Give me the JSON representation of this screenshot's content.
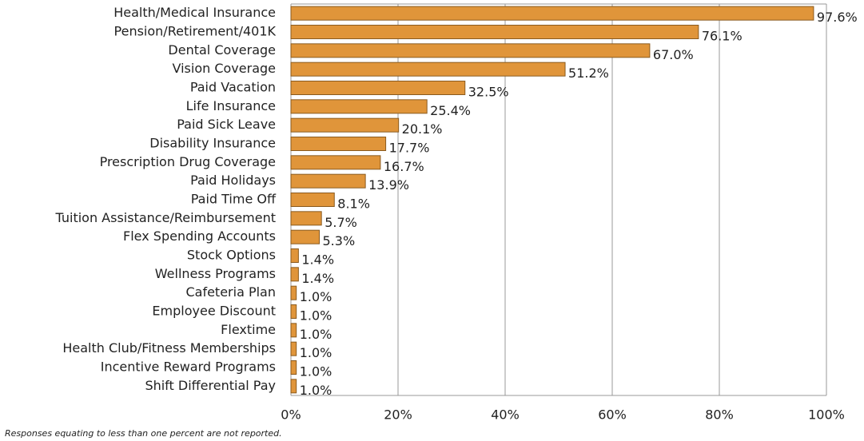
{
  "chart_data": {
    "type": "bar",
    "orientation": "horizontal",
    "categories": [
      "Health/Medical Insurance",
      "Pension/Retirement/401K",
      "Dental Coverage",
      "Vision Coverage",
      "Paid Vacation",
      "Life Insurance",
      "Paid Sick Leave",
      "Disability Insurance",
      "Prescription Drug Coverage",
      "Paid Holidays",
      "Paid Time Off",
      "Tuition Assistance/Reimbursement",
      "Flex Spending Accounts",
      "Stock Options",
      "Wellness Programs",
      "Cafeteria Plan",
      "Employee Discount",
      "Flextime",
      "Health Club/Fitness Memberships",
      "Incentive Reward Programs",
      "Shift Differential Pay"
    ],
    "values": [
      97.6,
      76.1,
      67.0,
      51.2,
      32.5,
      25.4,
      20.1,
      17.7,
      16.7,
      13.9,
      8.1,
      5.7,
      5.3,
      1.4,
      1.4,
      1.0,
      1.0,
      1.0,
      1.0,
      1.0,
      1.0
    ],
    "value_labels": [
      "97.6%",
      "76.1%",
      "67.0%",
      "51.2%",
      "32.5%",
      "25.4%",
      "20.1%",
      "17.7%",
      "16.7%",
      "13.9%",
      "8.1%",
      "5.7%",
      "5.3%",
      "1.4%",
      "1.4%",
      "1.0%",
      "1.0%",
      "1.0%",
      "1.0%",
      "1.0%",
      "1.0%"
    ],
    "color": "#e0953a",
    "xlim": [
      0,
      100
    ],
    "xticks": [
      {
        "value": 0,
        "label": "0%"
      },
      {
        "value": 20,
        "label": "20%"
      },
      {
        "value": 40,
        "label": "40%"
      },
      {
        "value": 60,
        "label": "60%"
      },
      {
        "value": 80,
        "label": "80%"
      },
      {
        "value": 100,
        "label": "100%"
      }
    ],
    "grid": true,
    "note": "Responses equating to less than one percent are not reported."
  }
}
